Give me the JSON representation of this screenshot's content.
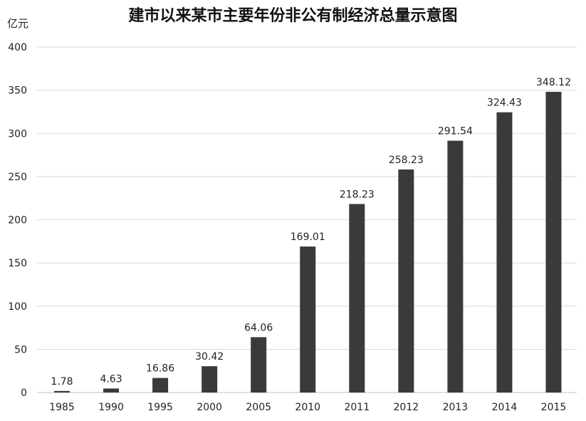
{
  "chart_data": {
    "type": "bar",
    "title": "建市以来某市主要年份非公有制经济总量示意图",
    "ylabel": "亿元",
    "xlabel": "",
    "categories": [
      "1985",
      "1990",
      "1995",
      "2000",
      "2005",
      "2010",
      "2011",
      "2012",
      "2013",
      "2014",
      "2015"
    ],
    "values": [
      1.78,
      4.63,
      16.86,
      30.42,
      64.06,
      169.01,
      218.23,
      258.23,
      291.54,
      324.43,
      348.12
    ],
    "value_labels": [
      "1.78",
      "4.63",
      "16.86",
      "30.42",
      "64.06",
      "169.01",
      "218.23",
      "258.23",
      "291.54",
      "324.43",
      "348.12"
    ],
    "ylim": [
      0,
      400
    ],
    "yticks": [
      "0",
      "50",
      "100",
      "150",
      "200",
      "250",
      "300",
      "350",
      "400"
    ],
    "grid": true,
    "bar_color": "#3a3a3a"
  }
}
